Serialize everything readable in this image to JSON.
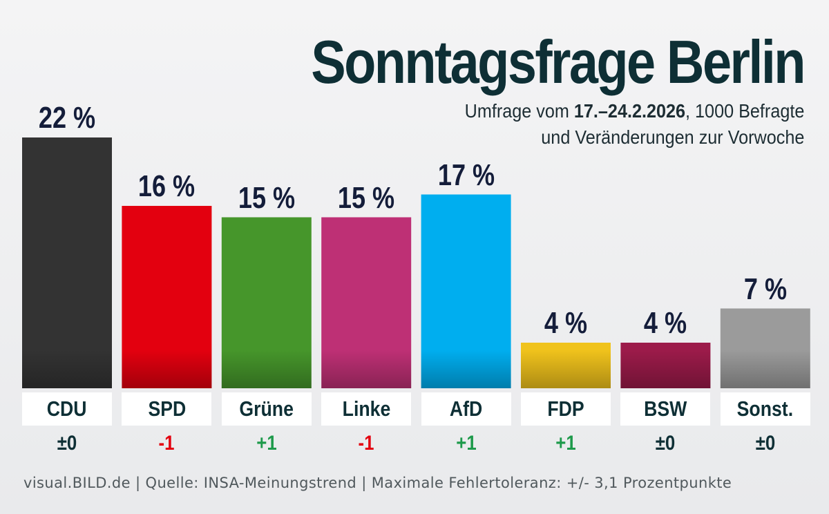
{
  "header": {
    "title": "Sonntagsfrage Berlin",
    "subtitle_pre": "Umfrage vom ",
    "subtitle_date": "17.–24.2.2026",
    "subtitle_post": ", 1000 Befragte",
    "subtitle_line2": "und Veränderungen zur Vorwoche"
  },
  "footer": {
    "text": "visual.BILD.de | Quelle: INSA-Meinungstrend | Maximale Fehlertoleranz: +/- 3,1 Prozentpunkte"
  },
  "colors": {
    "title": "#0e2f35",
    "value_text": "#141d3a",
    "change_positive": "#1e9a4b",
    "change_negative": "#e3000f",
    "change_neutral": "#0e2f35"
  },
  "chart_data": {
    "type": "bar",
    "unit": "%",
    "ylim": [
      0,
      22
    ],
    "categories": [
      "CDU",
      "SPD",
      "Grüne",
      "Linke",
      "AfD",
      "FDP",
      "BSW",
      "Sonst."
    ],
    "values": [
      22,
      16,
      15,
      15,
      17,
      4,
      4,
      7
    ],
    "value_labels": [
      "22 %",
      "16 %",
      "15 %",
      "15 %",
      "17 %",
      "4 %",
      "4 %",
      "7 %"
    ],
    "changes": [
      "±0",
      "-1",
      "+1",
      "-1",
      "+1",
      "+1",
      "±0",
      "±0"
    ],
    "change_types": [
      "neutral",
      "negative",
      "positive",
      "negative",
      "positive",
      "positive",
      "neutral",
      "neutral"
    ],
    "bar_colors": [
      "#333333",
      "#e3000f",
      "#46962b",
      "#be3075",
      "#00aeef",
      "#f0c31c",
      "#9c1b4a",
      "#9b9b9b"
    ]
  }
}
